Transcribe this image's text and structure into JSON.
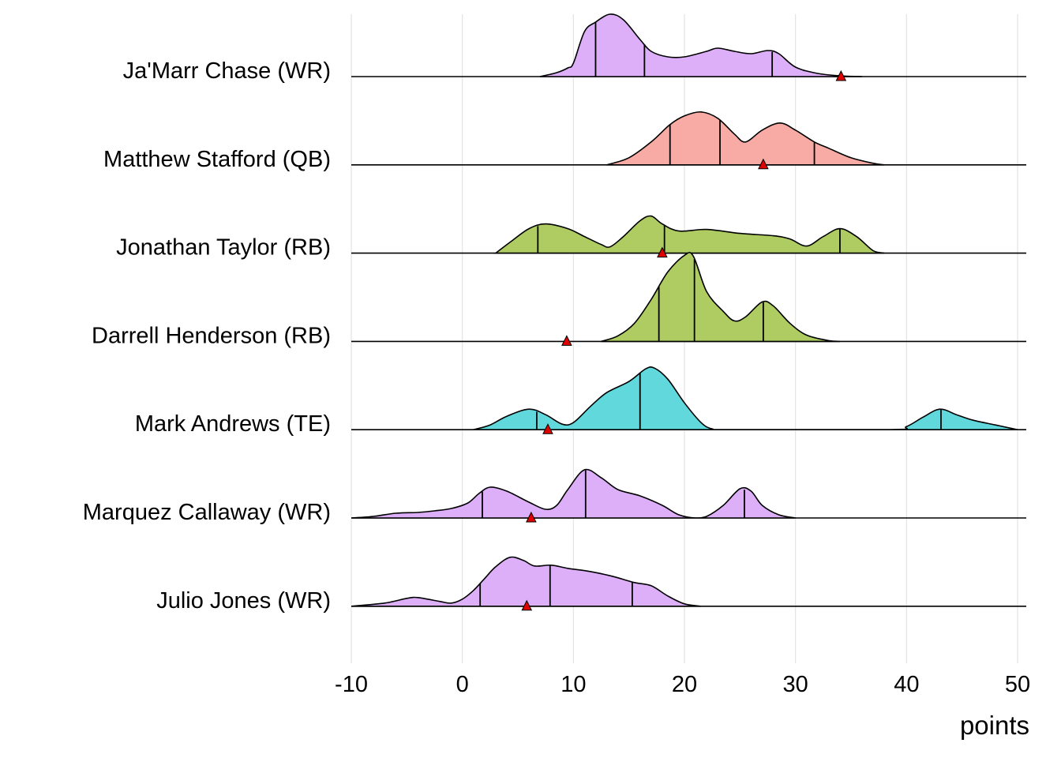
{
  "chart_data": {
    "type": "ridgeline",
    "title": "",
    "xlabel": "points",
    "ylabel": "",
    "xlim": [
      -10,
      50
    ],
    "xticks": [
      "-10",
      "0",
      "10",
      "20",
      "30",
      "40",
      "50"
    ],
    "xtick_values": [
      -10,
      0,
      10,
      20,
      30,
      40,
      50
    ],
    "grid": "vertical major",
    "density_units": "relative height (112 = one row spacing)",
    "series": [
      {
        "name": "Ja'Marr Chase (WR)",
        "color": "#DCAFF8",
        "quantiles": [
          12.0,
          16.4,
          27.9
        ],
        "actual": 34.1,
        "density": [
          [
            7,
            0
          ],
          [
            8.5,
            5
          ],
          [
            9.5,
            11
          ],
          [
            10,
            17
          ],
          [
            11,
            57
          ],
          [
            12,
            69
          ],
          [
            13.3,
            79
          ],
          [
            14.5,
            72
          ],
          [
            16,
            47
          ],
          [
            17,
            32
          ],
          [
            18.5,
            25
          ],
          [
            20,
            25
          ],
          [
            22,
            32
          ],
          [
            23,
            36
          ],
          [
            24.5,
            32
          ],
          [
            26,
            29
          ],
          [
            27.5,
            33
          ],
          [
            28.5,
            29
          ],
          [
            30,
            12
          ],
          [
            32,
            4
          ],
          [
            34,
            1
          ],
          [
            36,
            0
          ]
        ]
      },
      {
        "name": "Matthew Stafford (QB)",
        "color": "#F8ABA4",
        "quantiles": [
          18.7,
          23.2,
          31.7
        ],
        "actual": 27.1,
        "density": [
          [
            13,
            0
          ],
          [
            15,
            9
          ],
          [
            17,
            29
          ],
          [
            18.7,
            51
          ],
          [
            20,
            62
          ],
          [
            21.5,
            67
          ],
          [
            23,
            59
          ],
          [
            24.5,
            39
          ],
          [
            25.5,
            29
          ],
          [
            27,
            44
          ],
          [
            28.6,
            53
          ],
          [
            30,
            44
          ],
          [
            31.7,
            29
          ],
          [
            33,
            21
          ],
          [
            35,
            9
          ],
          [
            37,
            2
          ],
          [
            38,
            0
          ]
        ]
      },
      {
        "name": "Jonathan Taylor (RB)",
        "color": "#AECC62",
        "quantiles": [
          6.8,
          18.2,
          34.0
        ],
        "actual": 18.0,
        "density": [
          [
            3,
            0
          ],
          [
            4.5,
            16
          ],
          [
            6,
            31
          ],
          [
            7.5,
            37
          ],
          [
            9.5,
            31
          ],
          [
            11,
            21
          ],
          [
            12.5,
            11
          ],
          [
            13.3,
            8
          ],
          [
            14.5,
            21
          ],
          [
            16,
            41
          ],
          [
            17,
            47
          ],
          [
            18,
            37
          ],
          [
            19.5,
            28
          ],
          [
            22,
            30
          ],
          [
            25,
            25
          ],
          [
            28,
            22
          ],
          [
            29.5,
            18
          ],
          [
            31,
            9
          ],
          [
            32.5,
            21
          ],
          [
            34,
            31
          ],
          [
            35.5,
            21
          ],
          [
            37,
            3
          ],
          [
            38,
            0
          ]
        ]
      },
      {
        "name": "Darrell Henderson (RB)",
        "color": "#AECC62",
        "quantiles": [
          17.7,
          20.9,
          27.1
        ],
        "actual": 9.4,
        "density": [
          [
            12.5,
            0
          ],
          [
            14,
            7
          ],
          [
            15.5,
            23
          ],
          [
            17,
            53
          ],
          [
            18.5,
            88
          ],
          [
            20,
            109
          ],
          [
            20.8,
            108
          ],
          [
            22,
            63
          ],
          [
            23.5,
            38
          ],
          [
            24.5,
            26
          ],
          [
            25.5,
            31
          ],
          [
            27,
            50
          ],
          [
            28,
            45
          ],
          [
            29.5,
            23
          ],
          [
            31,
            8
          ],
          [
            33,
            1
          ],
          [
            34,
            0
          ]
        ]
      },
      {
        "name": "Mark Andrews (TE)",
        "color": "#60D8DC",
        "quantiles": [
          6.7,
          16.0,
          43.1
        ],
        "actual": 7.7,
        "density": [
          [
            1,
            0
          ],
          [
            2.5,
            6
          ],
          [
            4,
            17
          ],
          [
            6,
            26
          ],
          [
            7.5,
            19
          ],
          [
            9,
            7
          ],
          [
            10,
            9
          ],
          [
            11.5,
            29
          ],
          [
            13,
            47
          ],
          [
            15,
            61
          ],
          [
            16.5,
            77
          ],
          [
            17.3,
            78
          ],
          [
            18.5,
            64
          ],
          [
            20,
            34
          ],
          [
            21.5,
            9
          ],
          [
            22.5,
            1
          ],
          [
            24,
            0
          ],
          [
            38.5,
            0
          ],
          [
            40,
            4
          ],
          [
            41.5,
            16
          ],
          [
            43,
            26
          ],
          [
            44.5,
            19
          ],
          [
            46,
            12
          ],
          [
            48,
            6
          ],
          [
            50,
            0
          ]
        ]
      },
      {
        "name": "Marquez Callaway (WR)",
        "color": "#DCAFF8",
        "quantiles": [
          1.8,
          11.1,
          25.4
        ],
        "actual": 6.2,
        "density": [
          [
            -10,
            0
          ],
          [
            -8,
            2
          ],
          [
            -6,
            6
          ],
          [
            -4,
            7
          ],
          [
            -2.5,
            9
          ],
          [
            -1,
            12
          ],
          [
            0.5,
            19
          ],
          [
            1.5,
            31
          ],
          [
            2.5,
            39
          ],
          [
            4,
            34
          ],
          [
            6,
            20
          ],
          [
            7.5,
            11
          ],
          [
            8.5,
            16
          ],
          [
            9.5,
            36
          ],
          [
            11,
            61
          ],
          [
            12.5,
            51
          ],
          [
            14,
            36
          ],
          [
            16,
            28
          ],
          [
            18,
            16
          ],
          [
            19.5,
            4
          ],
          [
            21,
            0
          ],
          [
            22,
            2
          ],
          [
            23.5,
            16
          ],
          [
            25,
            37
          ],
          [
            26,
            34
          ],
          [
            27,
            16
          ],
          [
            28.5,
            4
          ],
          [
            30,
            0
          ]
        ]
      },
      {
        "name": "Julio Jones (WR)",
        "color": "#DCAFF8",
        "quantiles": [
          1.6,
          7.9,
          15.3
        ],
        "actual": 5.8,
        "density": [
          [
            -10,
            0
          ],
          [
            -7,
            4
          ],
          [
            -5,
            10
          ],
          [
            -4,
            11
          ],
          [
            -2,
            6
          ],
          [
            -1,
            4
          ],
          [
            0,
            9
          ],
          [
            1,
            20
          ],
          [
            2,
            35
          ],
          [
            3,
            50
          ],
          [
            4.3,
            62
          ],
          [
            5.5,
            58
          ],
          [
            6.5,
            51
          ],
          [
            8,
            52
          ],
          [
            9.5,
            48
          ],
          [
            11.5,
            44
          ],
          [
            13.5,
            38
          ],
          [
            15.5,
            30
          ],
          [
            17,
            26
          ],
          [
            18.5,
            13
          ],
          [
            20,
            3
          ],
          [
            21.5,
            0
          ]
        ]
      }
    ]
  }
}
